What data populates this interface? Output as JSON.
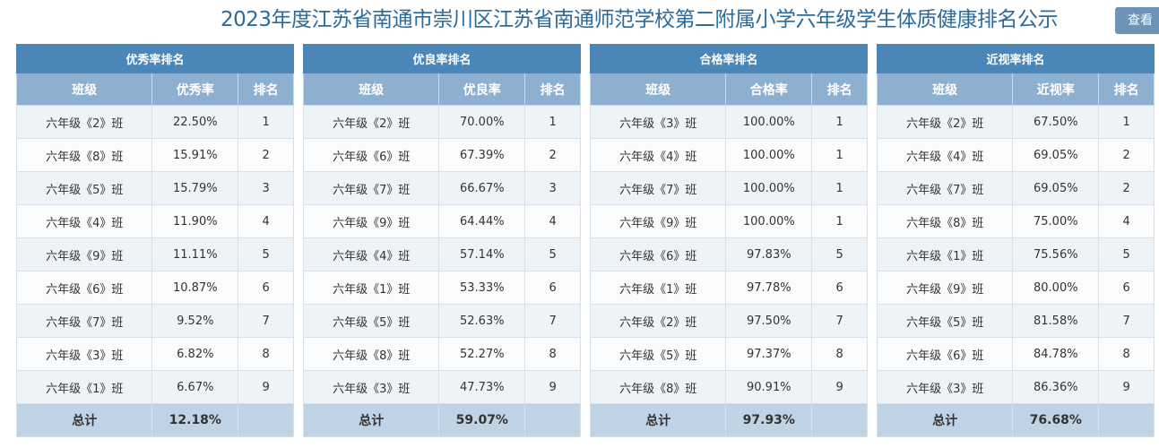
{
  "header": {
    "title": "2023年度江苏省南通市崇川区江苏省南通师范学校第二附属小学六年级学生体质健康排名公示",
    "view_button": "查看"
  },
  "tables": [
    {
      "caption": "优秀率排名",
      "columns": [
        "班级",
        "优秀率",
        "排名"
      ],
      "rows": [
        [
          "六年级《2》班",
          "22.50%",
          "1"
        ],
        [
          "六年级《8》班",
          "15.91%",
          "2"
        ],
        [
          "六年级《5》班",
          "15.79%",
          "3"
        ],
        [
          "六年级《4》班",
          "11.90%",
          "4"
        ],
        [
          "六年级《9》班",
          "11.11%",
          "5"
        ],
        [
          "六年级《6》班",
          "10.87%",
          "6"
        ],
        [
          "六年级《7》班",
          "9.52%",
          "7"
        ],
        [
          "六年级《3》班",
          "6.82%",
          "8"
        ],
        [
          "六年级《1》班",
          "6.67%",
          "9"
        ]
      ],
      "total": [
        "总计",
        "12.18%",
        ""
      ]
    },
    {
      "caption": "优良率排名",
      "columns": [
        "班级",
        "优良率",
        "排名"
      ],
      "rows": [
        [
          "六年级《2》班",
          "70.00%",
          "1"
        ],
        [
          "六年级《6》班",
          "67.39%",
          "2"
        ],
        [
          "六年级《7》班",
          "66.67%",
          "3"
        ],
        [
          "六年级《9》班",
          "64.44%",
          "4"
        ],
        [
          "六年级《4》班",
          "57.14%",
          "5"
        ],
        [
          "六年级《1》班",
          "53.33%",
          "6"
        ],
        [
          "六年级《5》班",
          "52.63%",
          "7"
        ],
        [
          "六年级《8》班",
          "52.27%",
          "8"
        ],
        [
          "六年级《3》班",
          "47.73%",
          "9"
        ]
      ],
      "total": [
        "总计",
        "59.07%",
        ""
      ]
    },
    {
      "caption": "合格率排名",
      "columns": [
        "班级",
        "合格率",
        "排名"
      ],
      "rows": [
        [
          "六年级《3》班",
          "100.00%",
          "1"
        ],
        [
          "六年级《4》班",
          "100.00%",
          "1"
        ],
        [
          "六年级《7》班",
          "100.00%",
          "1"
        ],
        [
          "六年级《9》班",
          "100.00%",
          "1"
        ],
        [
          "六年级《6》班",
          "97.83%",
          "5"
        ],
        [
          "六年级《1》班",
          "97.78%",
          "6"
        ],
        [
          "六年级《2》班",
          "97.50%",
          "7"
        ],
        [
          "六年级《5》班",
          "97.37%",
          "8"
        ],
        [
          "六年级《8》班",
          "90.91%",
          "9"
        ]
      ],
      "total": [
        "总计",
        "97.93%",
        ""
      ]
    },
    {
      "caption": "近视率排名",
      "columns": [
        "班级",
        "近视率",
        "排名"
      ],
      "rows": [
        [
          "六年级《2》班",
          "67.50%",
          "1"
        ],
        [
          "六年级《4》班",
          "69.05%",
          "2"
        ],
        [
          "六年级《7》班",
          "69.05%",
          "2"
        ],
        [
          "六年级《8》班",
          "75.00%",
          "4"
        ],
        [
          "六年级《1》班",
          "75.56%",
          "5"
        ],
        [
          "六年级《9》班",
          "80.00%",
          "6"
        ],
        [
          "六年级《5》班",
          "81.58%",
          "7"
        ],
        [
          "六年级《6》班",
          "84.78%",
          "8"
        ],
        [
          "六年级《3》班",
          "86.36%",
          "9"
        ]
      ],
      "total": [
        "总计",
        "76.68%",
        ""
      ]
    }
  ]
}
